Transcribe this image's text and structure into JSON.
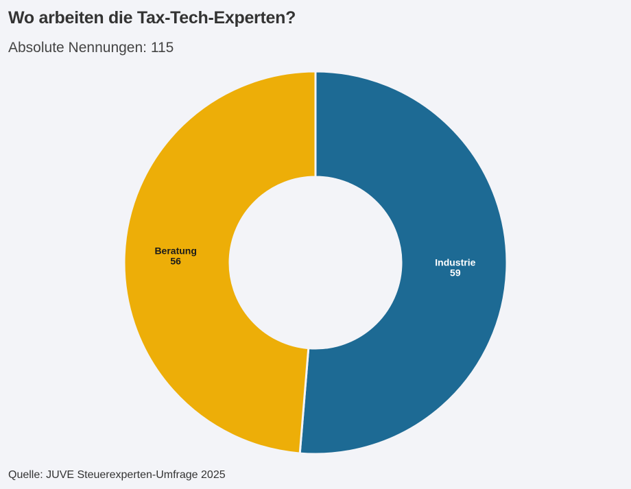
{
  "title": "Wo arbeiten die Tax-Tech-Experten?",
  "subtitle": "Absolute Nennungen: 115",
  "source": "Quelle: JUVE Steuerexperten-Umfrage 2025",
  "chart_data": {
    "type": "pie",
    "donut": true,
    "title": "Wo arbeiten die Tax-Tech-Experten?",
    "subtitle": "Absolute Nennungen: 115",
    "categories": [
      "Industrie",
      "Beratung"
    ],
    "values": [
      59,
      56
    ],
    "colors": [
      "#1d6a94",
      "#edae08"
    ],
    "label_colors": [
      "#ffffff",
      "#1a1a1a"
    ],
    "legend": "none"
  }
}
